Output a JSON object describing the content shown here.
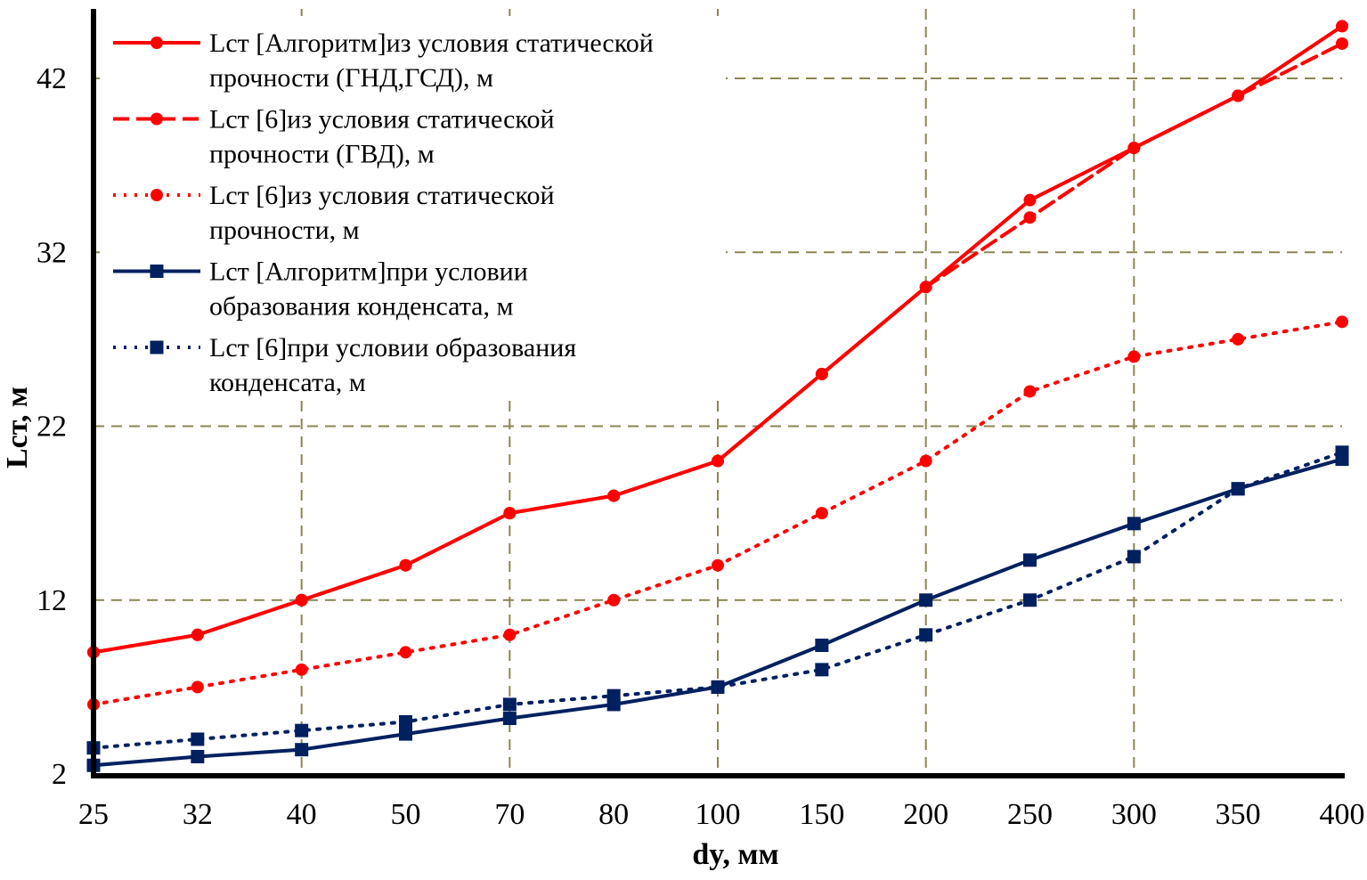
{
  "chart_data": {
    "type": "line",
    "title": "",
    "xlabel": "dy, мм",
    "ylabel": "Lст, м",
    "categories": [
      "25",
      "32",
      "40",
      "50",
      "70",
      "80",
      "100",
      "150",
      "200",
      "250",
      "300",
      "350",
      "400"
    ],
    "ylim": [
      2,
      45
    ],
    "yticks": [
      2,
      12,
      22,
      32,
      42
    ],
    "grid": true,
    "legend_position": "top-left",
    "series": [
      {
        "name": "Lст [Алгоритм]из условия статической прочности (ГНД,ГСД), м",
        "color": "#ff0000",
        "dash": "solid",
        "marker": "circle",
        "values": [
          9,
          10,
          12,
          14,
          17,
          18,
          20,
          25,
          30,
          35,
          38,
          41,
          45
        ]
      },
      {
        "name": "Lст [6]из условия статической прочности (ГВД), м",
        "color": "#ff0000",
        "dash": "dashed",
        "marker": "circle",
        "values": [
          9,
          10,
          12,
          14,
          17,
          18,
          20,
          25,
          30,
          34,
          38,
          41,
          44
        ]
      },
      {
        "name": "Lст [6]из условия статической прочности, м",
        "color": "#ff0000",
        "dash": "dotted",
        "marker": "circle",
        "values": [
          6,
          7,
          8,
          9,
          10,
          12,
          14,
          17,
          20,
          24,
          26,
          27,
          28
        ]
      },
      {
        "name": "Lст [Алгоритм]при условии образования конденсата, м",
        "color": "#002060",
        "dash": "solid",
        "marker": "square",
        "values": [
          2.5,
          3,
          3.4,
          4.3,
          5.2,
          6,
          7,
          9.4,
          12,
          14.3,
          16.4,
          18.4,
          20.1
        ]
      },
      {
        "name": "Lст [6]при условии образования конденсата, м",
        "color": "#002060",
        "dash": "dotted",
        "marker": "square",
        "values": [
          3.5,
          4,
          4.5,
          5,
          6,
          6.5,
          7,
          8,
          10,
          12,
          14.5,
          18.4,
          20.5
        ]
      }
    ],
    "legend_lines": [
      [
        "Lст [Алгоритм]из условия статической",
        "прочности (ГНД,ГСД), м"
      ],
      [
        "Lст [6]из условия статической",
        "прочности (ГВД), м"
      ],
      [
        "Lст [6]из условия статической",
        "прочности, м"
      ],
      [
        "Lст [Алгоритм]при условии",
        "образования конденсата, м"
      ],
      [
        "Lст [6]при условии образования",
        "конденсата, м"
      ]
    ],
    "grid_color": "#8b8550"
  }
}
